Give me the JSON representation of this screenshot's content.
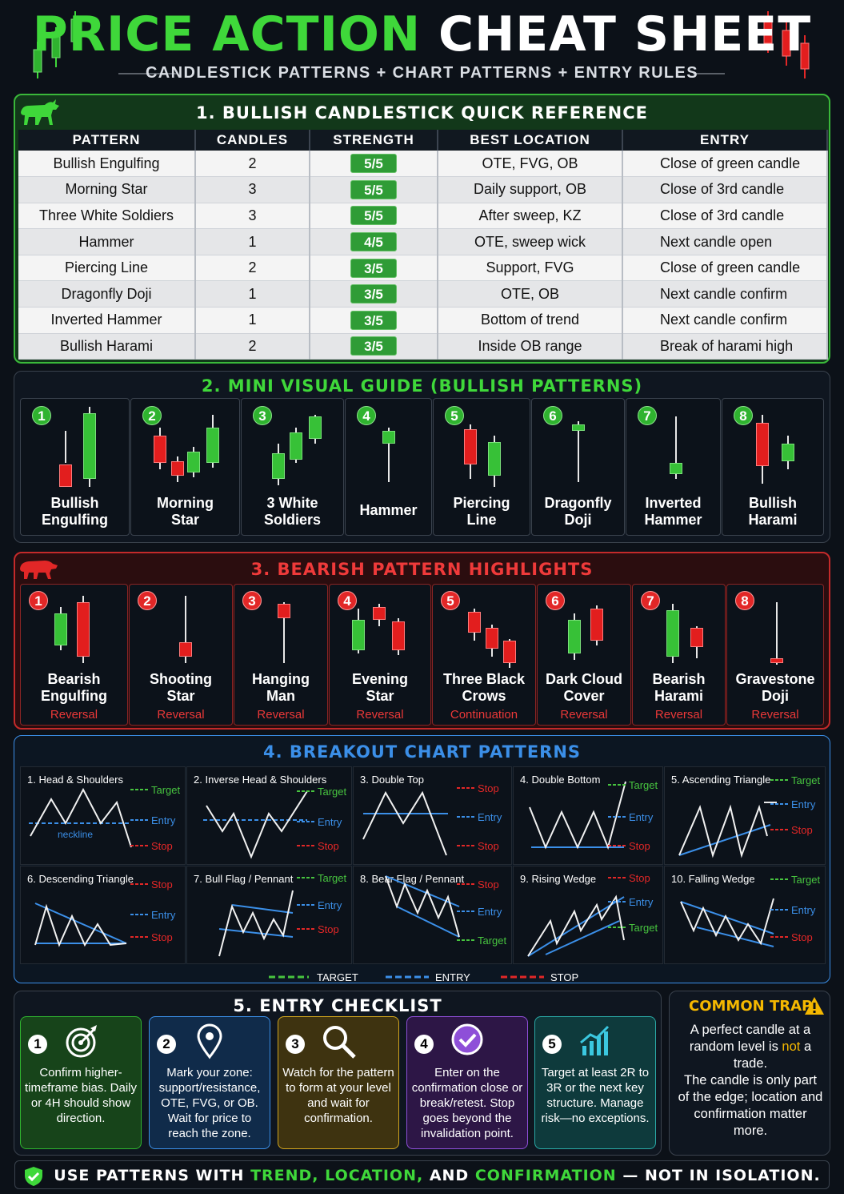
{
  "header": {
    "title_green": "PRICE ACTION",
    "title_white": "CHEAT SHEET",
    "subtitle": "CANDLESTICK PATTERNS + CHART PATTERNS + ENTRY RULES"
  },
  "colors": {
    "green": "#3fd83a",
    "red": "#e22727",
    "blue": "#3b8fe8",
    "yellow": "#f5b800"
  },
  "bullish_table": {
    "title": "1. BULLISH CANDLESTICK QUICK REFERENCE",
    "icon": "bull-icon",
    "columns": [
      "PATTERN",
      "CANDLES",
      "STRENGTH",
      "BEST LOCATION",
      "ENTRY"
    ],
    "rows": [
      {
        "pattern": "Bullish Engulfing",
        "candles": "2",
        "strength": "5/5",
        "location": "OTE, FVG, OB",
        "entry": "Close of green candle"
      },
      {
        "pattern": "Morning Star",
        "candles": "3",
        "strength": "5/5",
        "location": "Daily support, OB",
        "entry": "Close of 3rd candle"
      },
      {
        "pattern": "Three White Soldiers",
        "candles": "3",
        "strength": "5/5",
        "location": "After sweep, KZ",
        "entry": "Close of 3rd candle"
      },
      {
        "pattern": "Hammer",
        "candles": "1",
        "strength": "4/5",
        "location": "OTE, sweep wick",
        "entry": "Next candle open"
      },
      {
        "pattern": "Piercing Line",
        "candles": "2",
        "strength": "3/5",
        "location": "Support, FVG",
        "entry": "Close of green candle"
      },
      {
        "pattern": "Dragonfly Doji",
        "candles": "1",
        "strength": "3/5",
        "location": "OTE, OB",
        "entry": "Next candle confirm"
      },
      {
        "pattern": "Inverted Hammer",
        "candles": "1",
        "strength": "3/5",
        "location": "Bottom of trend",
        "entry": "Next candle confirm"
      },
      {
        "pattern": "Bullish Harami",
        "candles": "2",
        "strength": "3/5",
        "location": "Inside OB range",
        "entry": "Break of harami high"
      }
    ]
  },
  "bullish_visual": {
    "title": "2. MINI VISUAL GUIDE (BULLISH PATTERNS)",
    "cards": [
      {
        "num": "1",
        "label": "Bullish\nEngulfing"
      },
      {
        "num": "2",
        "label": "Morning\nStar"
      },
      {
        "num": "3",
        "label": "3 White\nSoldiers"
      },
      {
        "num": "4",
        "label": "Hammer"
      },
      {
        "num": "5",
        "label": "Piercing\nLine"
      },
      {
        "num": "6",
        "label": "Dragonfly\nDoji"
      },
      {
        "num": "7",
        "label": "Inverted\nHammer"
      },
      {
        "num": "8",
        "label": "Bullish\nHarami"
      }
    ]
  },
  "bearish_visual": {
    "title": "3. BEARISH PATTERN HIGHLIGHTS",
    "icon": "bear-icon",
    "cards": [
      {
        "num": "1",
        "label": "Bearish\nEngulfing",
        "type": "Reversal"
      },
      {
        "num": "2",
        "label": "Shooting\nStar",
        "type": "Reversal"
      },
      {
        "num": "3",
        "label": "Hanging\nMan",
        "type": "Reversal"
      },
      {
        "num": "4",
        "label": "Evening\nStar",
        "type": "Reversal"
      },
      {
        "num": "5",
        "label": "Three Black\nCrows",
        "type": "Continuation"
      },
      {
        "num": "6",
        "label": "Dark Cloud\nCover",
        "type": "Reversal"
      },
      {
        "num": "7",
        "label": "Bearish\nHarami",
        "type": "Reversal"
      },
      {
        "num": "8",
        "label": "Gravestone\nDoji",
        "type": "Reversal"
      }
    ]
  },
  "breakout": {
    "title": "4. BREAKOUT CHART PATTERNS",
    "patterns": [
      {
        "name": "1. Head & Shoulders",
        "labels": [
          "Target",
          "Entry",
          "Stop"
        ],
        "extra": "neckline"
      },
      {
        "name": "2. Inverse Head & Shoulders",
        "labels": [
          "Target",
          "Entry",
          "Stop"
        ]
      },
      {
        "name": "3. Double Top",
        "labels": [
          "Stop",
          "Entry",
          "Stop"
        ]
      },
      {
        "name": "4. Double Bottom",
        "labels": [
          "Target",
          "Entry",
          "Stop"
        ]
      },
      {
        "name": "5. Ascending Triangle",
        "labels": [
          "Target",
          "Entry",
          "Stop"
        ]
      },
      {
        "name": "6. Descending Triangle",
        "labels": [
          "Stop",
          "Entry",
          "Stop"
        ]
      },
      {
        "name": "7. Bull Flag / Pennant",
        "labels": [
          "Target",
          "Entry",
          "Stop"
        ]
      },
      {
        "name": "8. Bear Flag / Pennant",
        "labels": [
          "Stop",
          "Entry",
          "Target"
        ]
      },
      {
        "name": "9. Rising Wedge",
        "labels": [
          "Stop",
          "Entry",
          "Target"
        ]
      },
      {
        "name": "10. Falling Wedge",
        "labels": [
          "Target",
          "Entry",
          "Stop"
        ]
      }
    ],
    "legend": [
      "TARGET",
      "ENTRY",
      "STOP"
    ]
  },
  "checklist": {
    "title": "5. ENTRY CHECKLIST",
    "items": [
      {
        "num": "1",
        "icon": "target-icon",
        "text": "Confirm higher-timeframe bias. Daily or 4H should show direction."
      },
      {
        "num": "2",
        "icon": "location-pin-icon",
        "text": "Mark your zone: support/resistance, OTE, FVG, or OB. Wait for price to reach the zone."
      },
      {
        "num": "3",
        "icon": "magnifier-icon",
        "text": "Watch for the pattern to form at your level and wait for confirmation."
      },
      {
        "num": "4",
        "icon": "checkmark-icon",
        "text": "Enter on the confirmation close or break/retest. Stop goes beyond the invalidation point."
      },
      {
        "num": "5",
        "icon": "rising-chart-icon",
        "text": "Target at least 2R to 3R or the next key structure. Manage risk—no exceptions."
      }
    ]
  },
  "trap": {
    "title": "COMMON TRAP",
    "icon": "warning-icon",
    "text_a": "A perfect candle at a random level is ",
    "text_not": "not",
    "text_b": " a trade.",
    "text_c": "The candle is only part of the edge; location and confirmation matter more."
  },
  "footer": {
    "icon": "shield-check-icon",
    "a": "USE PATTERNS WITH ",
    "b": "TREND, LOCATION,",
    "c": " AND ",
    "d": "CONFIRMATION",
    "e": " — NOT IN ISOLATION."
  }
}
